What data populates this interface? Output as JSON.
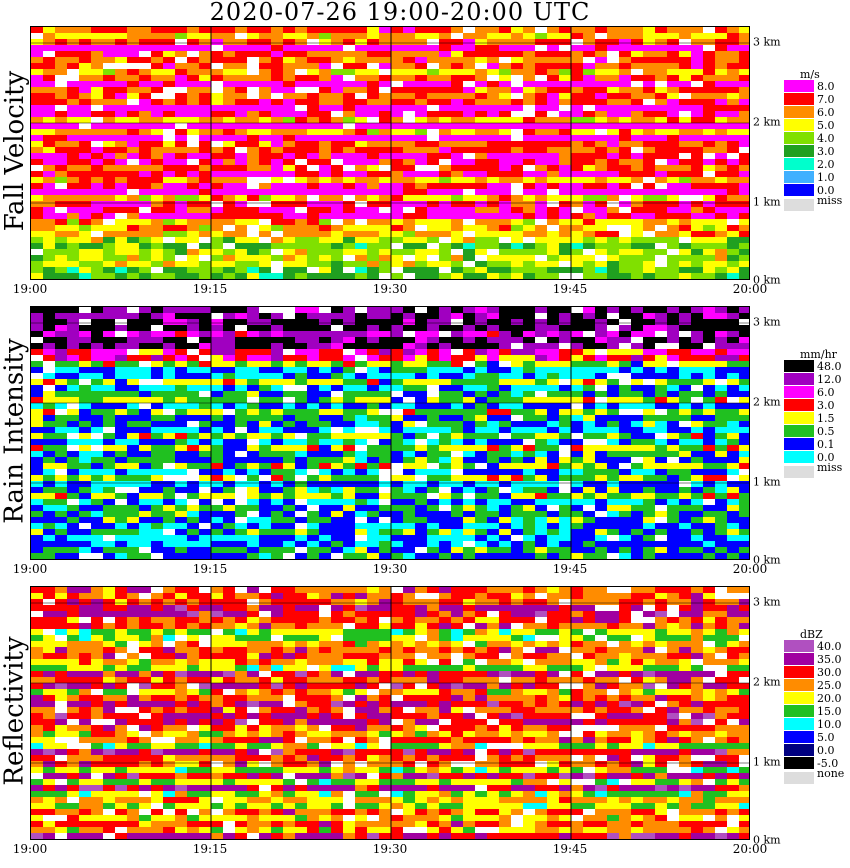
{
  "title": "2020-07-26   19:00-20:00 UTC",
  "x_ticks": [
    "19:00",
    "19:15",
    "19:30",
    "19:45",
    "20:00"
  ],
  "y_ticks": [
    "3 km",
    "2 km",
    "1 km",
    "0 km"
  ],
  "panels": [
    {
      "label": "Fall Velocity",
      "unit": "m/s",
      "legend": [
        {
          "label": "8.0",
          "color": "#ff00ff"
        },
        {
          "label": "7.0",
          "color": "#ff0000"
        },
        {
          "label": "6.0",
          "color": "#ff8c00"
        },
        {
          "label": "5.0",
          "color": "#ffff00"
        },
        {
          "label": "4.0",
          "color": "#80e000"
        },
        {
          "label": "3.0",
          "color": "#20a020"
        },
        {
          "label": "2.0",
          "color": "#00ffcc"
        },
        {
          "label": "1.0",
          "color": "#40b0ff"
        },
        {
          "label": "0.0",
          "color": "#0000ff"
        }
      ],
      "missing_label": "miss",
      "missing_color": "#dddddd"
    },
    {
      "label": "Rain Intensity",
      "unit": "mm/hr",
      "legend": [
        {
          "label": "48.0",
          "color": "#000000"
        },
        {
          "label": "12.0",
          "color": "#a000c0"
        },
        {
          "label": "6.0",
          "color": "#ff00ff"
        },
        {
          "label": "3.0",
          "color": "#ff0000"
        },
        {
          "label": "1.5",
          "color": "#ffff00"
        },
        {
          "label": "0.5",
          "color": "#20c020"
        },
        {
          "label": "0.1",
          "color": "#0000ff"
        },
        {
          "label": "0.0",
          "color": "#00ffff"
        }
      ],
      "missing_label": "miss",
      "missing_color": "#dddddd"
    },
    {
      "label": "Reflectivity",
      "unit": "dBZ",
      "legend": [
        {
          "label": "40.0",
          "color": "#b050c0"
        },
        {
          "label": "35.0",
          "color": "#a000a0"
        },
        {
          "label": "30.0",
          "color": "#ff0000"
        },
        {
          "label": "25.0",
          "color": "#ff8c00"
        },
        {
          "label": "20.0",
          "color": "#ffff00"
        },
        {
          "label": "15.0",
          "color": "#20c020"
        },
        {
          "label": "10.0",
          "color": "#00ffff"
        },
        {
          "label": "5.0",
          "color": "#0000ff"
        },
        {
          "label": "0.0",
          "color": "#000080"
        },
        {
          "label": "-5.0",
          "color": "#000000"
        }
      ],
      "missing_label": "none",
      "missing_color": "#dddddd"
    }
  ],
  "chart_data": [
    {
      "type": "heatmap",
      "title": "2020-07-26   19:00-20:00 UTC",
      "panel": "Fall Velocity",
      "xlabel": "",
      "ylabel": "",
      "x_range": [
        "19:00",
        "20:00"
      ],
      "y_range_km": [
        0,
        3.2
      ],
      "colorbar_unit": "m/s",
      "colorbar_levels": [
        0.0,
        1.0,
        2.0,
        3.0,
        4.0,
        5.0,
        6.0,
        7.0,
        8.0
      ],
      "vertical_gridlines": [
        "19:15",
        "19:30",
        "19:45"
      ]
    },
    {
      "type": "heatmap",
      "panel": "Rain Intensity",
      "xlabel": "",
      "ylabel": "",
      "x_range": [
        "19:00",
        "20:00"
      ],
      "y_range_km": [
        0,
        3.2
      ],
      "colorbar_unit": "mm/hr",
      "colorbar_levels": [
        0.0,
        0.1,
        0.5,
        1.5,
        3.0,
        6.0,
        12.0,
        48.0
      ],
      "vertical_gridlines": [
        "19:15",
        "19:30",
        "19:45"
      ]
    },
    {
      "type": "heatmap",
      "panel": "Reflectivity",
      "xlabel": "",
      "ylabel": "",
      "x_range": [
        "19:00",
        "20:00"
      ],
      "y_range_km": [
        0,
        3.2
      ],
      "colorbar_unit": "dBZ",
      "colorbar_levels": [
        -5.0,
        0.0,
        5.0,
        10.0,
        15.0,
        20.0,
        25.0,
        30.0,
        35.0,
        40.0
      ],
      "vertical_gridlines": [
        "19:15",
        "19:30",
        "19:45"
      ]
    }
  ]
}
